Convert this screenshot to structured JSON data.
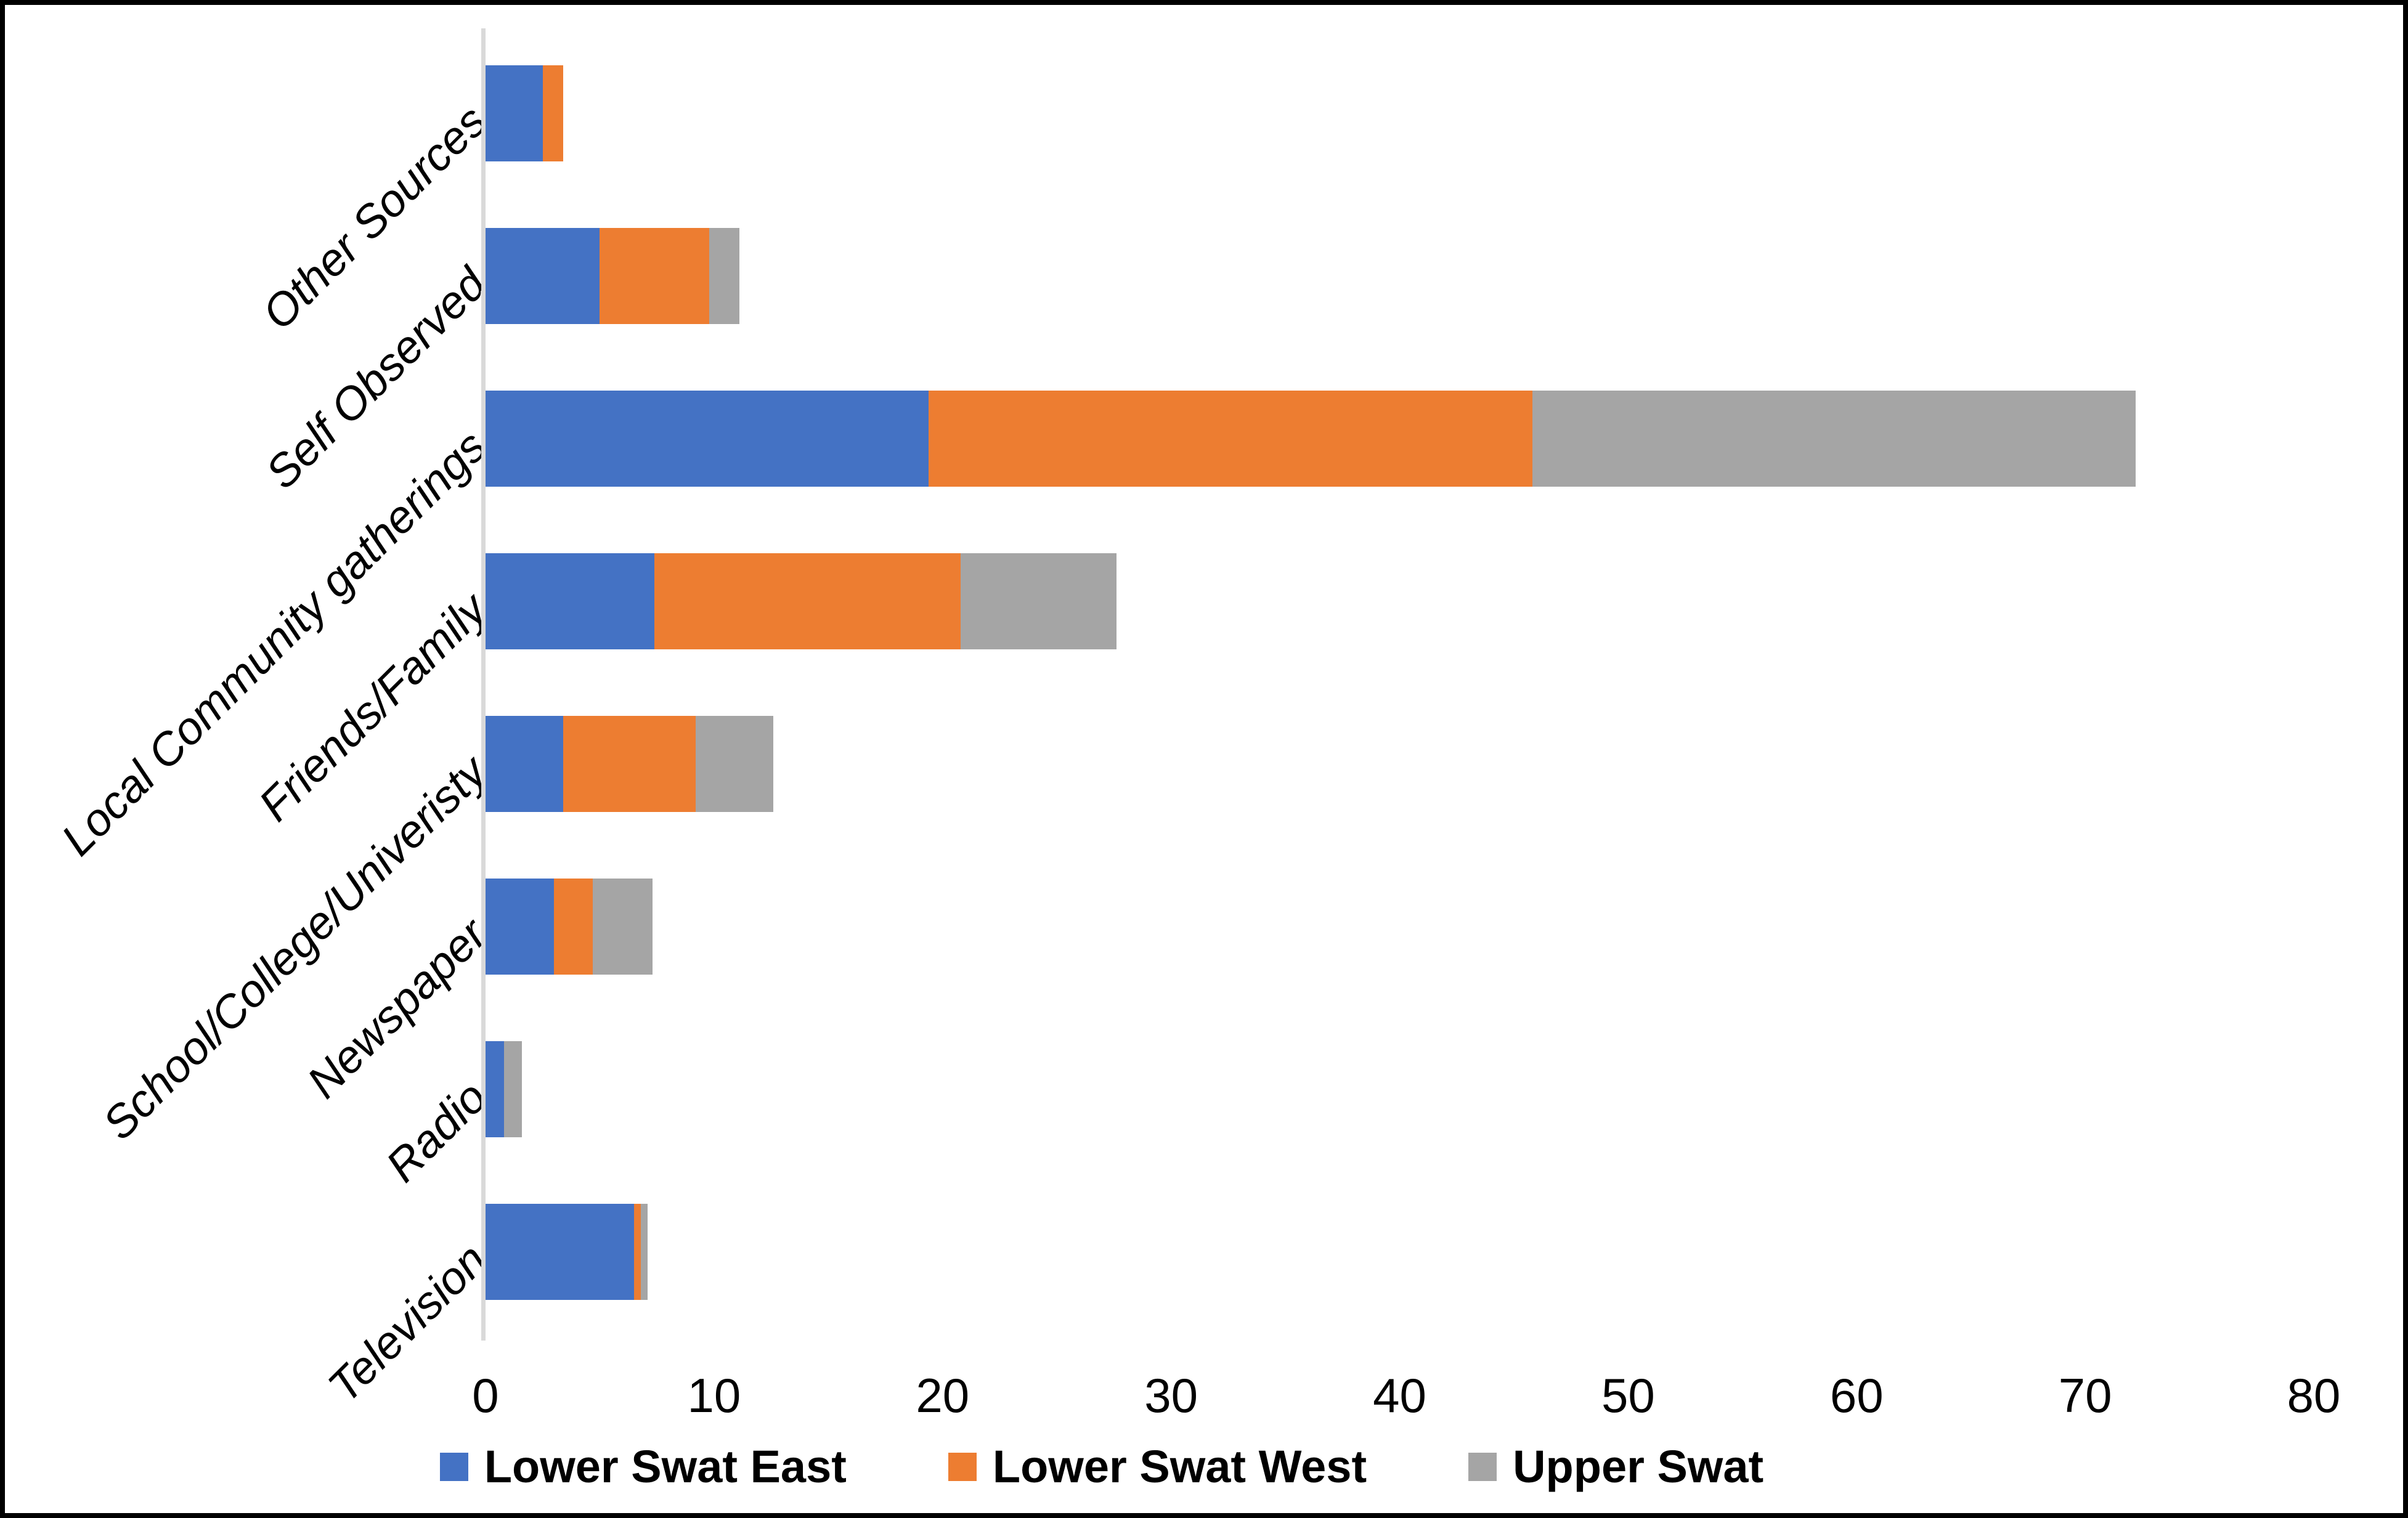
{
  "chart_data": {
    "type": "bar",
    "orientation": "horizontal-stacked",
    "title": "",
    "xlabel": "",
    "ylabel": "",
    "grid": false,
    "legend_position": "bottom",
    "categories_top_to_bottom": [
      "Other Sources",
      "Self Observed",
      "Local Community gatherings",
      "Friends/Family",
      "School/College/Univeristy",
      "Newspaper",
      "Radio",
      "Television"
    ],
    "series": [
      {
        "name": "Lower Swat East",
        "color": "#4472C4",
        "values": [
          2.5,
          5.0,
          19.4,
          7.4,
          3.4,
          3.0,
          0.8,
          6.5
        ]
      },
      {
        "name": "Lower Swat West",
        "color": "#ED7D31",
        "values": [
          0.9,
          4.8,
          26.4,
          13.4,
          5.8,
          1.7,
          0,
          0.3
        ]
      },
      {
        "name": "Upper Swat",
        "color": "#A5A5A5",
        "values": [
          0,
          1.3,
          26.4,
          6.8,
          3.4,
          2.6,
          0.8,
          0.3
        ]
      }
    ],
    "x_axis": {
      "min": 0,
      "max": 80,
      "ticks": [
        0,
        10,
        20,
        30,
        40,
        50,
        60,
        70,
        80
      ]
    },
    "colors": {
      "axis_line": "#d9d9d9",
      "border": "#000000",
      "background": "#ffffff"
    }
  }
}
